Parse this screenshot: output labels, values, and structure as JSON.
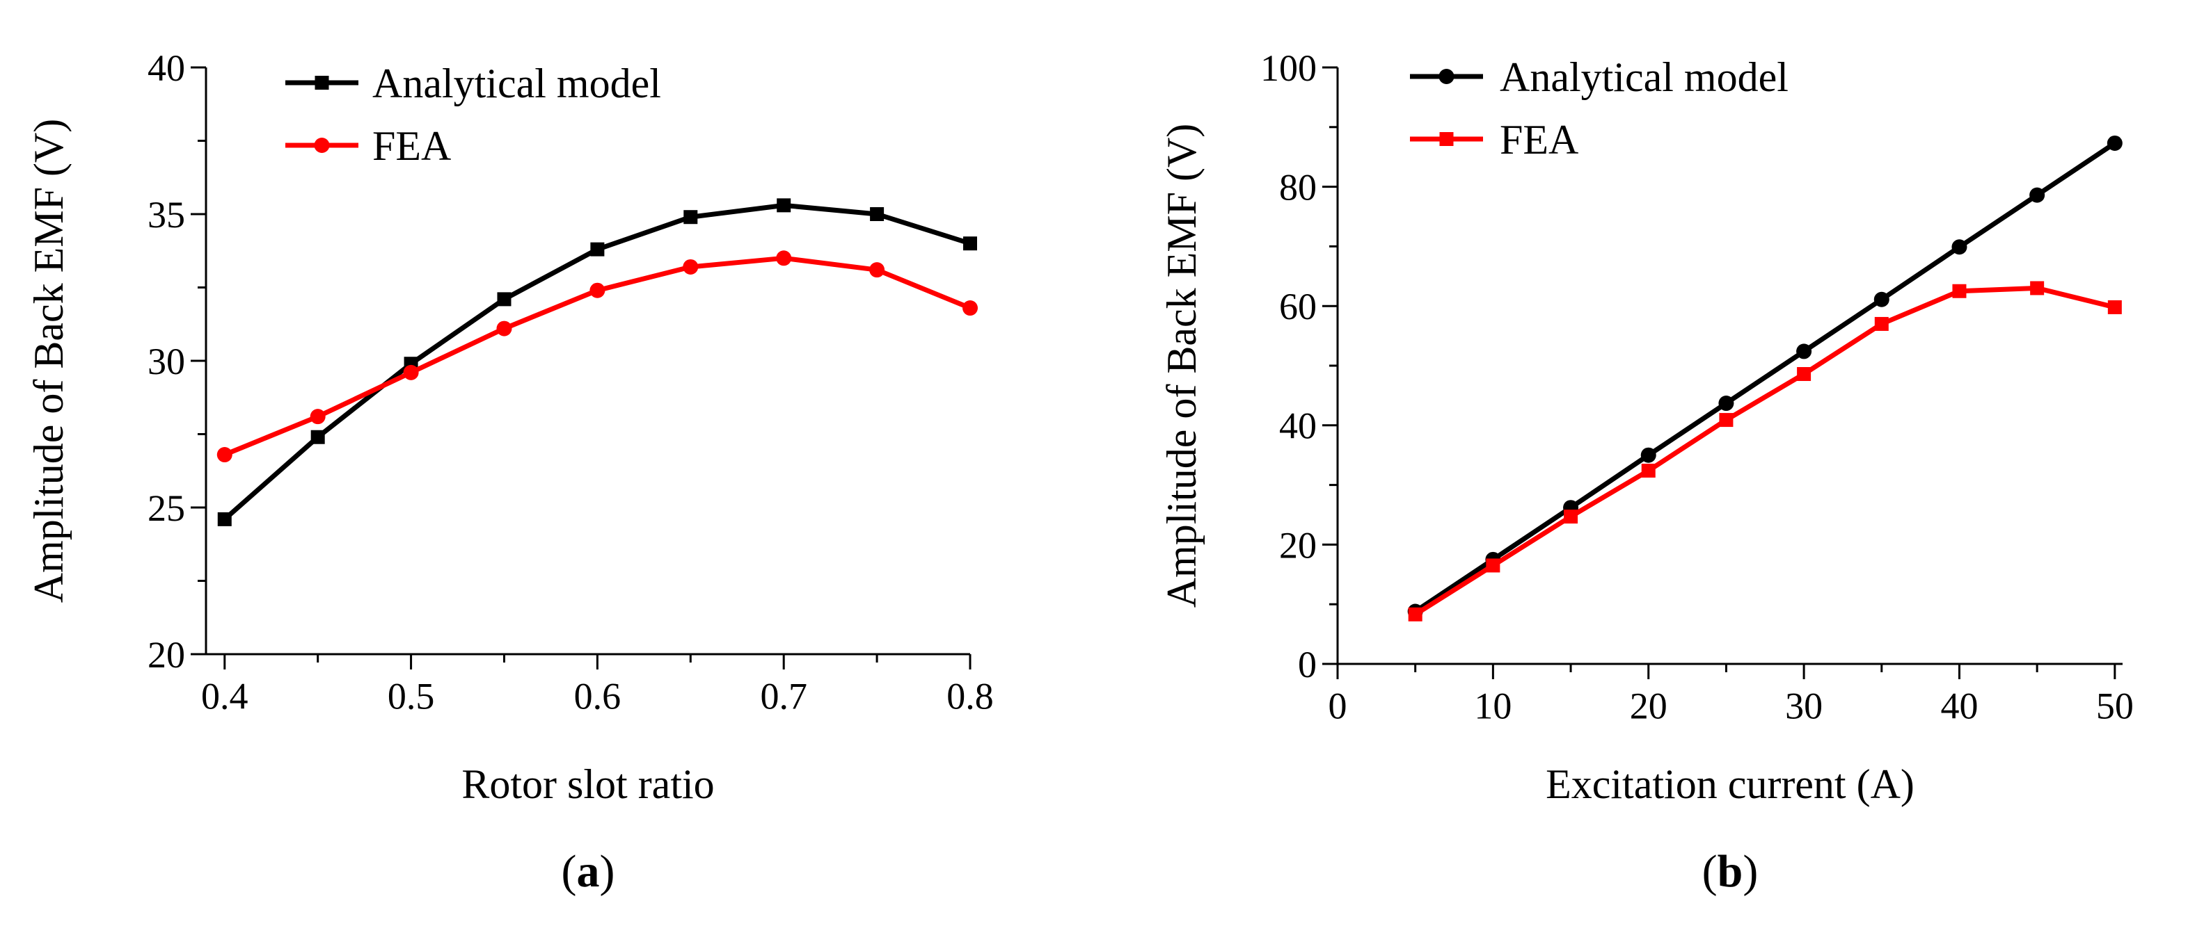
{
  "chart_data": [
    {
      "type": "line",
      "panel_label": "(a)",
      "panel_letter": "a",
      "xlabel": "Rotor slot ratio",
      "ylabel": "Amplitude of Back EMF (V)",
      "xlim": [
        0.39,
        0.8
      ],
      "ylim": [
        20,
        40
      ],
      "x_ticks": [
        0.4,
        0.5,
        0.6,
        0.7,
        0.8
      ],
      "x_tick_labels": [
        "0.4",
        "0.5",
        "0.6",
        "0.7",
        "0.8"
      ],
      "y_ticks": [
        20,
        25,
        30,
        35,
        40
      ],
      "y_tick_labels": [
        "20",
        "25",
        "30",
        "35",
        "40"
      ],
      "grid": false,
      "legend_position": "top-left",
      "x": [
        0.4,
        0.45,
        0.5,
        0.55,
        0.6,
        0.65,
        0.7,
        0.75,
        0.8
      ],
      "series": [
        {
          "name": "Analytical model",
          "color": "#000000",
          "marker": "square",
          "values": [
            24.6,
            27.4,
            29.9,
            32.1,
            33.8,
            34.9,
            35.3,
            35.0,
            34.0
          ]
        },
        {
          "name": "FEA",
          "color": "#ff0000",
          "marker": "circle",
          "values": [
            26.8,
            28.1,
            29.6,
            31.1,
            32.4,
            33.2,
            33.5,
            33.1,
            31.8
          ]
        }
      ]
    },
    {
      "type": "line",
      "panel_label": "(b)",
      "panel_letter": "b",
      "xlabel": "Excitation current (A)",
      "ylabel": "Amplitude of Back EMF (V)",
      "xlim": [
        0,
        50.5
      ],
      "ylim": [
        0,
        100
      ],
      "x_ticks": [
        0,
        10,
        20,
        30,
        40,
        50
      ],
      "x_tick_labels": [
        "0",
        "10",
        "20",
        "30",
        "40",
        "50"
      ],
      "y_ticks": [
        0,
        20,
        40,
        60,
        80,
        100
      ],
      "y_tick_labels": [
        "0",
        "20",
        "40",
        "60",
        "80",
        "100"
      ],
      "grid": false,
      "legend_position": "top-left",
      "x": [
        5,
        10,
        15,
        20,
        25,
        30,
        35,
        40,
        45,
        50
      ],
      "series": [
        {
          "name": "Analytical model",
          "color": "#000000",
          "marker": "circle",
          "values": [
            8.8,
            17.5,
            26.2,
            35.0,
            43.7,
            52.4,
            61.1,
            69.9,
            78.6,
            87.3
          ]
        },
        {
          "name": "FEA",
          "color": "#ff0000",
          "marker": "square",
          "values": [
            8.3,
            16.5,
            24.7,
            32.4,
            40.9,
            48.6,
            57.0,
            62.5,
            63.0,
            59.8
          ]
        }
      ]
    }
  ]
}
